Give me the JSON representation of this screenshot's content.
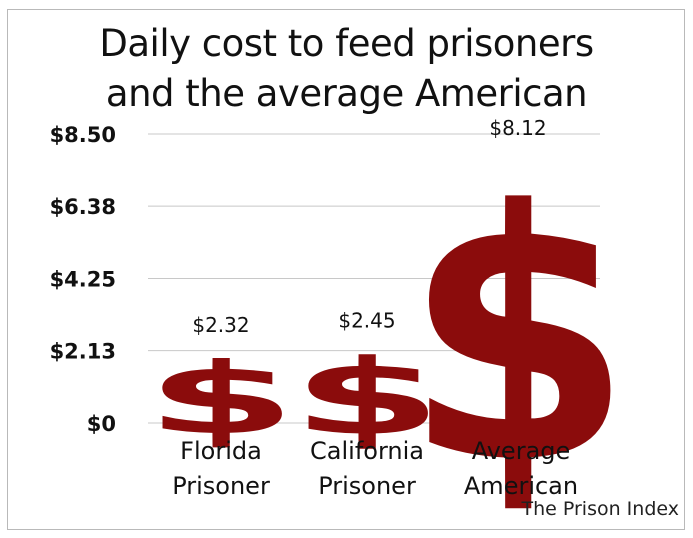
{
  "chart_data": {
    "type": "bar",
    "title_lines": [
      "Daily cost to feed prisoners",
      "and the average American"
    ],
    "categories": [
      [
        "Florida",
        "Prisoner"
      ],
      [
        "California",
        "Prisoner"
      ],
      [
        "Average",
        "American"
      ]
    ],
    "values": [
      2.32,
      2.45,
      8.12
    ],
    "value_labels": [
      "$2.32",
      "$2.45",
      "$8.12"
    ],
    "y_ticks": [
      0,
      2.13,
      4.25,
      6.38,
      8.5
    ],
    "y_tick_labels": [
      "$0",
      "$2.13",
      "$4.25",
      "$6.38",
      "$8.50"
    ],
    "ylim": [
      0,
      8.5
    ],
    "grid": true,
    "mark": "dollar-sign",
    "bar_color": "#8b0c0c"
  },
  "source_note": "The Prison Index",
  "colors": {
    "bar": "#8b0c0c",
    "grid": "#c8c8c8",
    "text": "#111111"
  }
}
